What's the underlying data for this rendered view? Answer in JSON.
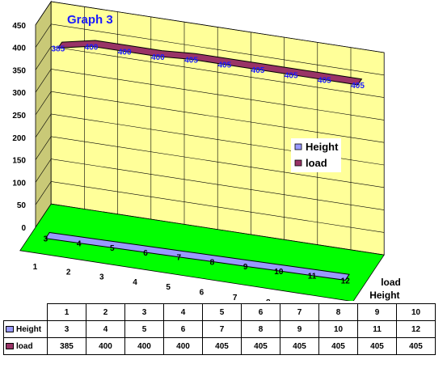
{
  "chart_data": {
    "type": "line",
    "title": "Graph 3",
    "categories": [
      "1",
      "2",
      "3",
      "4",
      "5",
      "6",
      "7",
      "8",
      "9",
      "10"
    ],
    "series": [
      {
        "name": "Height",
        "values": [
          3,
          4,
          5,
          6,
          7,
          8,
          9,
          10,
          11,
          12
        ],
        "color": "#9999ff"
      },
      {
        "name": "load",
        "values": [
          385,
          400,
          400,
          400,
          405,
          405,
          405,
          405,
          405,
          405
        ],
        "color": "#993366"
      }
    ],
    "depth_axis_labels": [
      "load",
      "Height"
    ],
    "y_ticks": [
      "0",
      "50",
      "100",
      "150",
      "200",
      "250",
      "300",
      "350",
      "400",
      "450"
    ],
    "ylim": [
      0,
      450
    ],
    "wall_color": "#ffff99",
    "floor_color": "#00ff00",
    "legend_position": "right",
    "grid": true
  },
  "table": {
    "header": [
      "1",
      "2",
      "3",
      "4",
      "5",
      "6",
      "7",
      "8",
      "9",
      "10"
    ],
    "rows": [
      {
        "label": "Height",
        "color": "#9999ff",
        "values": [
          "3",
          "4",
          "5",
          "6",
          "7",
          "8",
          "9",
          "10",
          "11",
          "12"
        ]
      },
      {
        "label": "load",
        "color": "#993366",
        "values": [
          "385",
          "400",
          "400",
          "400",
          "405",
          "405",
          "405",
          "405",
          "405",
          "405"
        ]
      }
    ]
  }
}
